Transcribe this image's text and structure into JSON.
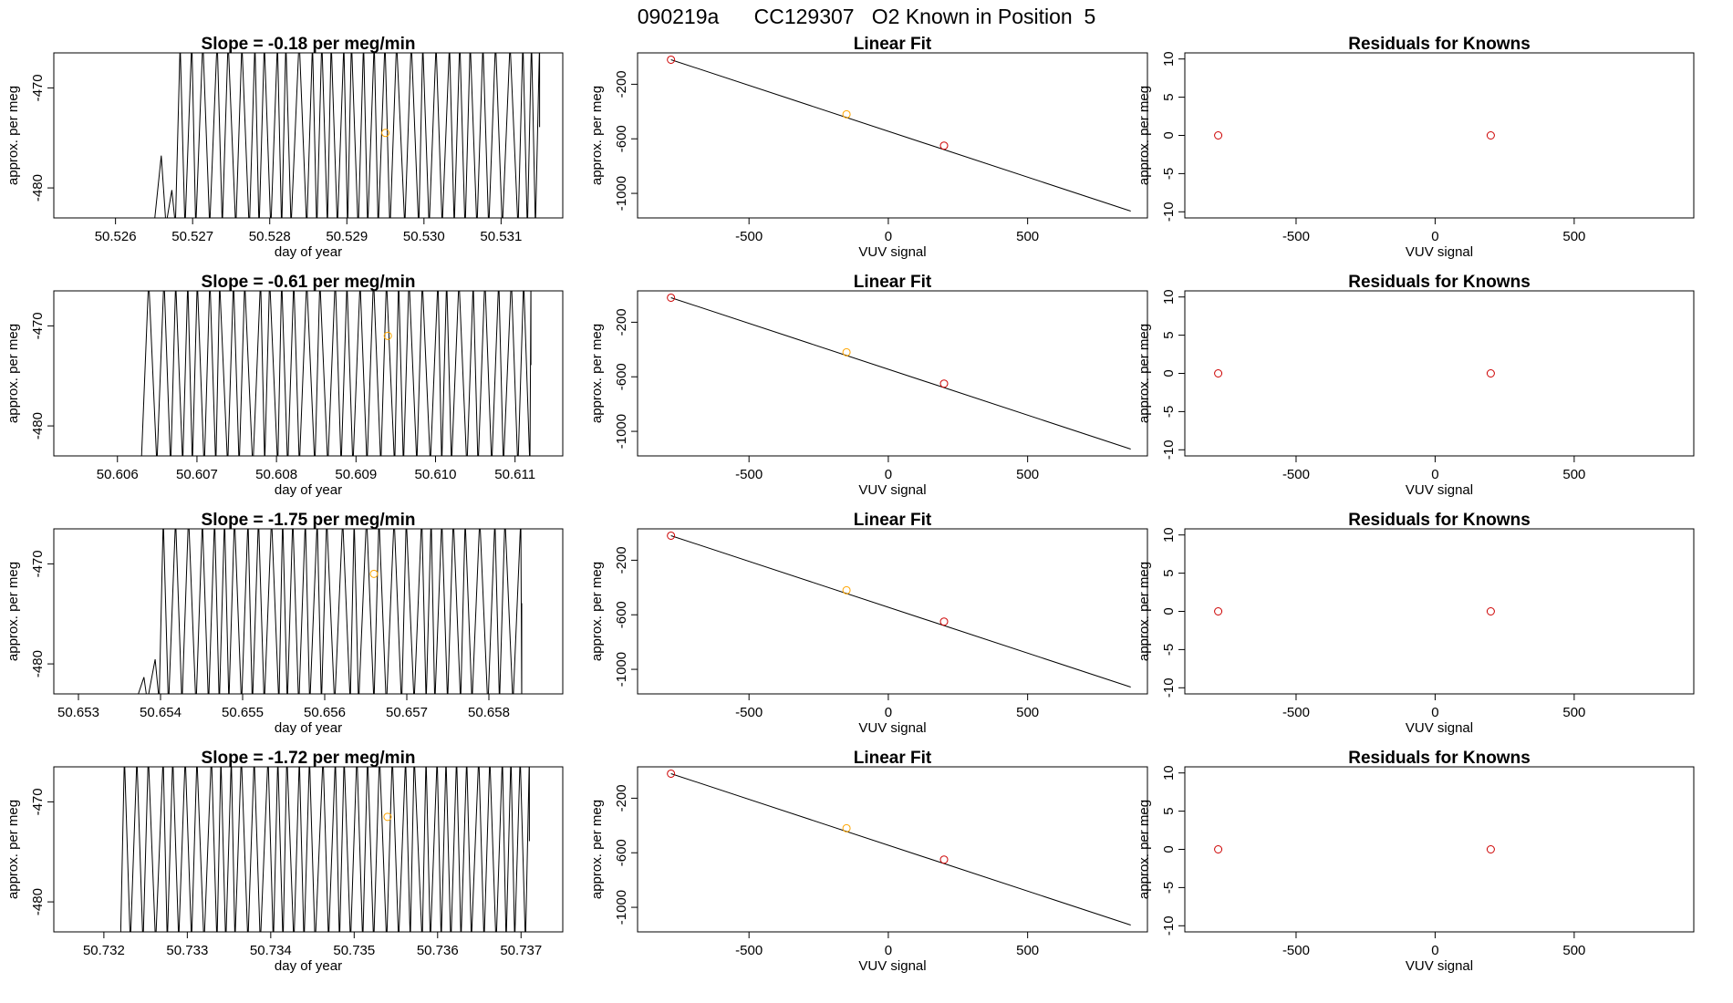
{
  "page_title": "090219a      CC129307   O2 Known in Position  5",
  "colors": {
    "line": "#000000",
    "known": "#cd0000",
    "sample": "#ffa500",
    "frame": "#000000"
  },
  "chart_data": [
    {
      "type": "line",
      "row": 1,
      "panel": "timeseries",
      "title": "Slope =  -0.18  per meg/min",
      "xlabel": "day of year",
      "ylabel": "approx. per meg",
      "xlim": [
        50.5252,
        50.5318
      ],
      "ylim": [
        -483,
        -466.5
      ],
      "xticks": [
        50.526,
        50.527,
        50.528,
        50.529,
        50.53,
        50.531
      ],
      "xtick_labels": [
        "50.526",
        "50.527",
        "50.528",
        "50.529",
        "50.530",
        "50.531"
      ],
      "yticks": [
        -470,
        -480
      ],
      "ytick_labels": [
        "-470",
        "-480"
      ],
      "signal_start": 50.5265,
      "signal_end": 50.5315,
      "first_full_swing": 50.5268,
      "marker": {
        "x": 50.5295,
        "y": -474.5,
        "color": "orange"
      }
    },
    {
      "type": "scatter",
      "row": 1,
      "panel": "linear_fit",
      "title": "Linear Fit",
      "xlabel": "VUV signal",
      "ylabel": "approx. per meg",
      "xlim": [
        -900,
        930
      ],
      "ylim": [
        -1180,
        30
      ],
      "xticks": [
        -500,
        0,
        500
      ],
      "xtick_labels": [
        "-500",
        "0",
        "500"
      ],
      "yticks": [
        -200,
        -600,
        -1000
      ],
      "ytick_labels": [
        "-200",
        "-600",
        "-1000"
      ],
      "fit_line": {
        "x": [
          -780,
          870
        ],
        "y": [
          -20,
          -1130
        ]
      },
      "points": [
        {
          "x": -780,
          "y": -20,
          "color": "red"
        },
        {
          "x": -150,
          "y": -420,
          "color": "orange"
        },
        {
          "x": 200,
          "y": -650,
          "color": "red"
        }
      ]
    },
    {
      "type": "scatter",
      "row": 1,
      "panel": "residuals",
      "title": "Residuals for Knowns",
      "xlabel": "VUV signal",
      "ylabel": "approx. per meg",
      "xlim": [
        -900,
        930
      ],
      "ylim": [
        -10.8,
        10.8
      ],
      "xticks": [
        -500,
        0,
        500
      ],
      "xtick_labels": [
        "-500",
        "0",
        "500"
      ],
      "yticks": [
        10,
        5,
        0,
        -5,
        -10
      ],
      "ytick_labels": [
        "10",
        "5",
        "0",
        "-5",
        "-10"
      ],
      "points": [
        {
          "x": -780,
          "y": 0,
          "color": "red"
        },
        {
          "x": 200,
          "y": 0,
          "color": "red"
        }
      ]
    },
    {
      "type": "line",
      "row": 2,
      "panel": "timeseries",
      "title": "Slope =  -0.61  per meg/min",
      "xlabel": "day of year",
      "ylabel": "approx. per meg",
      "xlim": [
        50.6052,
        50.6116
      ],
      "ylim": [
        -483,
        -466.5
      ],
      "xticks": [
        50.606,
        50.607,
        50.608,
        50.609,
        50.61,
        50.611
      ],
      "xtick_labels": [
        "50.606",
        "50.607",
        "50.608",
        "50.609",
        "50.610",
        "50.611"
      ],
      "yticks": [
        -470,
        -480
      ],
      "ytick_labels": [
        "-470",
        "-480"
      ],
      "signal_start": 50.6063,
      "signal_end": 50.6112,
      "first_full_swing": 50.6063,
      "marker": {
        "x": 50.6094,
        "y": -471.0,
        "color": "orange"
      }
    },
    {
      "type": "scatter",
      "row": 2,
      "panel": "linear_fit",
      "title": "Linear Fit",
      "xlabel": "VUV signal",
      "ylabel": "approx. per meg",
      "xlim": [
        -900,
        930
      ],
      "ylim": [
        -1180,
        30
      ],
      "xticks": [
        -500,
        0,
        500
      ],
      "xtick_labels": [
        "-500",
        "0",
        "500"
      ],
      "yticks": [
        -200,
        -600,
        -1000
      ],
      "ytick_labels": [
        "-200",
        "-600",
        "-1000"
      ],
      "fit_line": {
        "x": [
          -780,
          870
        ],
        "y": [
          -20,
          -1130
        ]
      },
      "points": [
        {
          "x": -780,
          "y": -20,
          "color": "red"
        },
        {
          "x": -150,
          "y": -420,
          "color": "orange"
        },
        {
          "x": 200,
          "y": -650,
          "color": "red"
        }
      ]
    },
    {
      "type": "scatter",
      "row": 2,
      "panel": "residuals",
      "title": "Residuals for Knowns",
      "xlabel": "VUV signal",
      "ylabel": "approx. per meg",
      "xlim": [
        -900,
        930
      ],
      "ylim": [
        -10.8,
        10.8
      ],
      "xticks": [
        -500,
        0,
        500
      ],
      "xtick_labels": [
        "-500",
        "0",
        "500"
      ],
      "yticks": [
        10,
        5,
        0,
        -5,
        -10
      ],
      "ytick_labels": [
        "10",
        "5",
        "0",
        "-5",
        "-10"
      ],
      "points": [
        {
          "x": -780,
          "y": 0,
          "color": "red"
        },
        {
          "x": 200,
          "y": 0,
          "color": "red"
        }
      ]
    },
    {
      "type": "line",
      "row": 3,
      "panel": "timeseries",
      "title": "Slope =  -1.75  per meg/min",
      "xlabel": "day of year",
      "ylabel": "approx. per meg",
      "xlim": [
        50.6527,
        50.6589
      ],
      "ylim": [
        -483,
        -466.5
      ],
      "xticks": [
        50.653,
        50.654,
        50.655,
        50.656,
        50.657,
        50.658
      ],
      "xtick_labels": [
        "50.653",
        "50.654",
        "50.655",
        "50.656",
        "50.657",
        "50.658"
      ],
      "yticks": [
        -470,
        -480
      ],
      "ytick_labels": [
        "-470",
        "-480"
      ],
      "signal_start": 50.6537,
      "signal_end": 50.6584,
      "first_full_swing": 50.6539,
      "marker": {
        "x": 50.6566,
        "y": -471.0,
        "color": "orange"
      }
    },
    {
      "type": "scatter",
      "row": 3,
      "panel": "linear_fit",
      "title": "Linear Fit",
      "xlabel": "VUV signal",
      "ylabel": "approx. per meg",
      "xlim": [
        -900,
        930
      ],
      "ylim": [
        -1180,
        30
      ],
      "xticks": [
        -500,
        0,
        500
      ],
      "xtick_labels": [
        "-500",
        "0",
        "500"
      ],
      "yticks": [
        -200,
        -600,
        -1000
      ],
      "ytick_labels": [
        "-200",
        "-600",
        "-1000"
      ],
      "fit_line": {
        "x": [
          -780,
          870
        ],
        "y": [
          -20,
          -1130
        ]
      },
      "points": [
        {
          "x": -780,
          "y": -20,
          "color": "red"
        },
        {
          "x": -150,
          "y": -420,
          "color": "orange"
        },
        {
          "x": 200,
          "y": -650,
          "color": "red"
        }
      ]
    },
    {
      "type": "scatter",
      "row": 3,
      "panel": "residuals",
      "title": "Residuals for Knowns",
      "xlabel": "VUV signal",
      "ylabel": "approx. per meg",
      "xlim": [
        -900,
        930
      ],
      "ylim": [
        -10.8,
        10.8
      ],
      "xticks": [
        -500,
        0,
        500
      ],
      "xtick_labels": [
        "-500",
        "0",
        "500"
      ],
      "yticks": [
        10,
        5,
        0,
        -5,
        -10
      ],
      "ytick_labels": [
        "10",
        "5",
        "0",
        "-5",
        "-10"
      ],
      "points": [
        {
          "x": -780,
          "y": 0,
          "color": "red"
        },
        {
          "x": 200,
          "y": 0,
          "color": "red"
        }
      ]
    },
    {
      "type": "line",
      "row": 4,
      "panel": "timeseries",
      "title": "Slope =  -1.72  per meg/min",
      "xlabel": "day of year",
      "ylabel": "approx. per meg",
      "xlim": [
        50.7314,
        50.7375
      ],
      "ylim": [
        -483,
        -466.5
      ],
      "xticks": [
        50.732,
        50.733,
        50.734,
        50.735,
        50.736,
        50.737
      ],
      "xtick_labels": [
        "50.732",
        "50.733",
        "50.734",
        "50.735",
        "50.736",
        "50.737"
      ],
      "yticks": [
        -470,
        -480
      ],
      "ytick_labels": [
        "-470",
        "-480"
      ],
      "signal_start": 50.7322,
      "signal_end": 50.7371,
      "first_full_swing": 50.7322,
      "marker": {
        "x": 50.7354,
        "y": -471.5,
        "color": "orange"
      }
    },
    {
      "type": "scatter",
      "row": 4,
      "panel": "linear_fit",
      "title": "Linear Fit",
      "xlabel": "VUV signal",
      "ylabel": "approx. per meg",
      "xlim": [
        -900,
        930
      ],
      "ylim": [
        -1180,
        30
      ],
      "xticks": [
        -500,
        0,
        500
      ],
      "xtick_labels": [
        "-500",
        "0",
        "500"
      ],
      "yticks": [
        -200,
        -600,
        -1000
      ],
      "ytick_labels": [
        "-200",
        "-600",
        "-1000"
      ],
      "fit_line": {
        "x": [
          -780,
          870
        ],
        "y": [
          -20,
          -1130
        ]
      },
      "points": [
        {
          "x": -780,
          "y": -20,
          "color": "red"
        },
        {
          "x": -150,
          "y": -420,
          "color": "orange"
        },
        {
          "x": 200,
          "y": -650,
          "color": "red"
        }
      ]
    },
    {
      "type": "scatter",
      "row": 4,
      "panel": "residuals",
      "title": "Residuals for Knowns",
      "xlabel": "VUV signal",
      "ylabel": "approx. per meg",
      "xlim": [
        -900,
        930
      ],
      "ylim": [
        -10.8,
        10.8
      ],
      "xticks": [
        -500,
        0,
        500
      ],
      "xtick_labels": [
        "-500",
        "0",
        "500"
      ],
      "yticks": [
        10,
        5,
        0,
        -5,
        -10
      ],
      "ytick_labels": [
        "10",
        "5",
        "0",
        "-5",
        "-10"
      ],
      "points": [
        {
          "x": -780,
          "y": 0,
          "color": "red"
        },
        {
          "x": 200,
          "y": 0,
          "color": "red"
        }
      ]
    }
  ]
}
